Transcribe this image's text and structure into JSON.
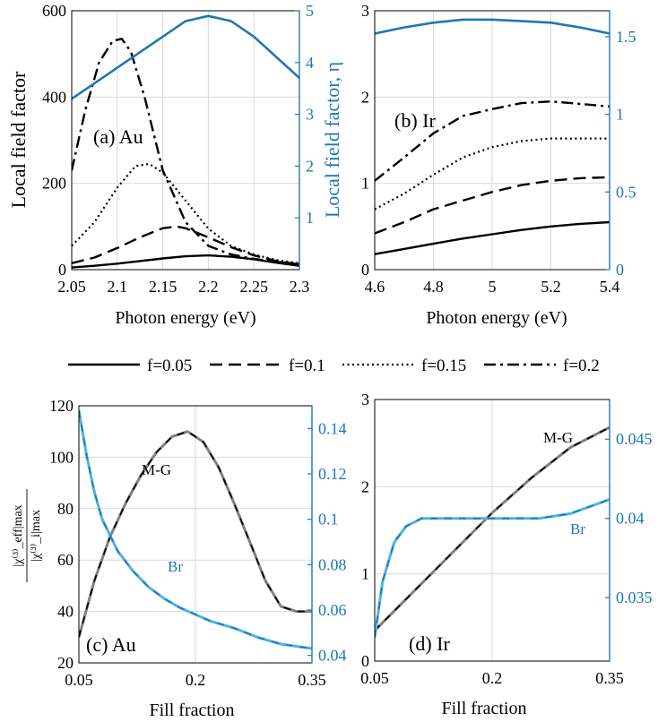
{
  "colors": {
    "primary": "#000000",
    "secondary": "#1f77b4",
    "light_blue": "#4fb3e3",
    "gray": "#808080",
    "grid": "#d9d9d9"
  },
  "legend": {
    "entries": [
      {
        "label": "f=0.05",
        "style": "solid"
      },
      {
        "label": "f=0.1",
        "style": "dashed"
      },
      {
        "label": "f=0.15",
        "style": "dotted"
      },
      {
        "label": "f=0.2",
        "style": "dashdot"
      }
    ]
  },
  "chart_data": [
    {
      "id": "a",
      "type": "line",
      "panel_label": "(a) Au",
      "xlabel": "Photon energy (eV)",
      "ylabel_left": "Local field factor",
      "ylabel_right": "Local field factor, η",
      "xlim": [
        2.05,
        2.3
      ],
      "ylim_left": [
        0,
        600
      ],
      "ylim_right": [
        0,
        5
      ],
      "xticks": [
        2.05,
        2.1,
        2.15,
        2.2,
        2.25,
        2.3
      ],
      "yticks_left": [
        0,
        200,
        400,
        600
      ],
      "yticks_right": [
        1,
        2,
        3,
        4,
        5
      ],
      "series": [
        {
          "name": "f=0.05",
          "axis": "left",
          "style": "solid",
          "x": [
            2.05,
            2.075,
            2.1,
            2.125,
            2.15,
            2.175,
            2.2,
            2.225,
            2.25,
            2.275,
            2.3
          ],
          "y": [
            5,
            9,
            14,
            20,
            26,
            31,
            33,
            30,
            24,
            16,
            9
          ]
        },
        {
          "name": "f=0.1",
          "axis": "left",
          "style": "dashed",
          "x": [
            2.05,
            2.075,
            2.1,
            2.125,
            2.15,
            2.165,
            2.175,
            2.2,
            2.225,
            2.25,
            2.275,
            2.3
          ],
          "y": [
            15,
            28,
            50,
            75,
            96,
            100,
            96,
            75,
            52,
            33,
            20,
            12
          ]
        },
        {
          "name": "f=0.15",
          "axis": "left",
          "style": "dotted",
          "x": [
            2.05,
            2.075,
            2.1,
            2.12,
            2.135,
            2.15,
            2.175,
            2.2,
            2.225,
            2.25,
            2.275,
            2.3
          ],
          "y": [
            55,
            110,
            190,
            240,
            245,
            225,
            160,
            95,
            55,
            35,
            22,
            15
          ]
        },
        {
          "name": "f=0.2",
          "axis": "left",
          "style": "dashdot",
          "x": [
            2.05,
            2.065,
            2.08,
            2.095,
            2.105,
            2.115,
            2.13,
            2.15,
            2.175,
            2.2,
            2.225,
            2.25,
            2.275,
            2.3
          ],
          "y": [
            230,
            370,
            480,
            530,
            535,
            505,
            400,
            230,
            110,
            55,
            35,
            25,
            18,
            13
          ]
        },
        {
          "name": "η",
          "axis": "right",
          "style": "blue",
          "x": [
            2.05,
            2.1,
            2.15,
            2.175,
            2.2,
            2.225,
            2.25,
            2.275,
            2.3
          ],
          "y": [
            3.3,
            3.9,
            4.5,
            4.8,
            4.9,
            4.8,
            4.5,
            4.1,
            3.7
          ]
        }
      ]
    },
    {
      "id": "b",
      "type": "line",
      "panel_label": "(b) Ir",
      "xlabel": "Photon energy (eV)",
      "xlim": [
        4.6,
        5.4
      ],
      "ylim_left": [
        0,
        3
      ],
      "ylim_right": [
        0,
        1.667
      ],
      "xticks": [
        4.6,
        4.8,
        5,
        5.2,
        5.4
      ],
      "yticks_left": [
        0,
        1,
        2,
        3
      ],
      "yticks_right": [
        0,
        0.5,
        1,
        1.5
      ],
      "series": [
        {
          "name": "f=0.05",
          "axis": "left",
          "style": "solid",
          "x": [
            4.6,
            4.7,
            4.8,
            4.9,
            5.0,
            5.1,
            5.2,
            5.3,
            5.4
          ],
          "y": [
            0.18,
            0.24,
            0.3,
            0.36,
            0.41,
            0.46,
            0.5,
            0.53,
            0.55
          ]
        },
        {
          "name": "f=0.1",
          "axis": "left",
          "style": "dashed",
          "x": [
            4.6,
            4.7,
            4.8,
            4.9,
            5.0,
            5.1,
            5.2,
            5.3,
            5.4
          ],
          "y": [
            0.42,
            0.55,
            0.7,
            0.8,
            0.9,
            0.98,
            1.03,
            1.06,
            1.07
          ]
        },
        {
          "name": "f=0.15",
          "axis": "left",
          "style": "dotted",
          "x": [
            4.6,
            4.7,
            4.8,
            4.9,
            5.0,
            5.1,
            5.2,
            5.3,
            5.4
          ],
          "y": [
            0.7,
            0.88,
            1.1,
            1.3,
            1.42,
            1.49,
            1.52,
            1.52,
            1.52
          ]
        },
        {
          "name": "f=0.2",
          "axis": "left",
          "style": "dashdot",
          "x": [
            4.6,
            4.7,
            4.8,
            4.9,
            5.0,
            5.1,
            5.2,
            5.3,
            5.4
          ],
          "y": [
            1.03,
            1.3,
            1.58,
            1.78,
            1.86,
            1.93,
            1.95,
            1.92,
            1.89
          ]
        },
        {
          "name": "η",
          "axis": "right",
          "style": "blue",
          "x": [
            4.6,
            4.7,
            4.8,
            4.9,
            5.0,
            5.1,
            5.2,
            5.3,
            5.4
          ],
          "y": [
            1.52,
            1.56,
            1.59,
            1.61,
            1.61,
            1.6,
            1.59,
            1.56,
            1.52
          ]
        }
      ]
    },
    {
      "id": "c",
      "type": "line",
      "panel_label": "(c) Au",
      "xlabel": "Fill fraction",
      "ylabel_left_num": "|χ⁽³⁾_eff|max",
      "ylabel_left_den": "|χ⁽³⁾_i|max",
      "xlim": [
        0.05,
        0.35
      ],
      "ylim_left": [
        20,
        120
      ],
      "ylim_right": [
        0.0367,
        0.15
      ],
      "xticks": [
        0.05,
        0.2,
        0.35
      ],
      "yticks_left": [
        20,
        40,
        60,
        80,
        100,
        120
      ],
      "yticks_right": [
        0.04,
        0.06,
        0.08,
        0.1,
        0.12,
        0.14
      ],
      "annotations": [
        "M-G",
        "Br"
      ],
      "series": [
        {
          "name": "M-G",
          "axis": "left",
          "style": "gray-dashed",
          "x": [
            0.05,
            0.07,
            0.09,
            0.11,
            0.13,
            0.15,
            0.17,
            0.19,
            0.21,
            0.23,
            0.25,
            0.27,
            0.29,
            0.31,
            0.33,
            0.35
          ],
          "y": [
            30,
            52,
            69,
            82,
            93,
            102,
            108,
            110,
            106,
            96,
            82,
            67,
            52,
            42,
            40,
            40
          ]
        },
        {
          "name": "Br",
          "axis": "right",
          "style": "lightblue-dashed",
          "x": [
            0.05,
            0.06,
            0.07,
            0.08,
            0.1,
            0.12,
            0.14,
            0.16,
            0.18,
            0.2,
            0.22,
            0.25,
            0.28,
            0.31,
            0.35
          ],
          "y": [
            0.148,
            0.128,
            0.112,
            0.1,
            0.086,
            0.077,
            0.07,
            0.065,
            0.061,
            0.058,
            0.055,
            0.052,
            0.048,
            0.045,
            0.043
          ]
        }
      ]
    },
    {
      "id": "d",
      "type": "line",
      "panel_label": "(d) Ir",
      "xlabel": "Fill fraction",
      "xlim": [
        0.05,
        0.35
      ],
      "ylim_left": [
        0,
        3
      ],
      "ylim_right": [
        0.031,
        0.0475
      ],
      "xticks": [
        0.05,
        0.2,
        0.35
      ],
      "yticks_left": [
        0,
        1,
        2,
        3
      ],
      "yticks_right": [
        0.035,
        0.04,
        0.045
      ],
      "annotations": [
        "M-G",
        "Br"
      ],
      "series": [
        {
          "name": "M-G",
          "axis": "left",
          "style": "gray-dashed",
          "x": [
            0.05,
            0.1,
            0.15,
            0.2,
            0.25,
            0.3,
            0.35
          ],
          "y": [
            0.35,
            0.8,
            1.25,
            1.7,
            2.1,
            2.45,
            2.68
          ]
        },
        {
          "name": "Br",
          "axis": "right",
          "style": "lightblue-dashed",
          "x": [
            0.05,
            0.06,
            0.075,
            0.09,
            0.11,
            0.14,
            0.2,
            0.26,
            0.3,
            0.35
          ],
          "y": [
            0.0325,
            0.036,
            0.0385,
            0.0395,
            0.04,
            0.04,
            0.04,
            0.04,
            0.0403,
            0.0412
          ]
        }
      ]
    }
  ]
}
